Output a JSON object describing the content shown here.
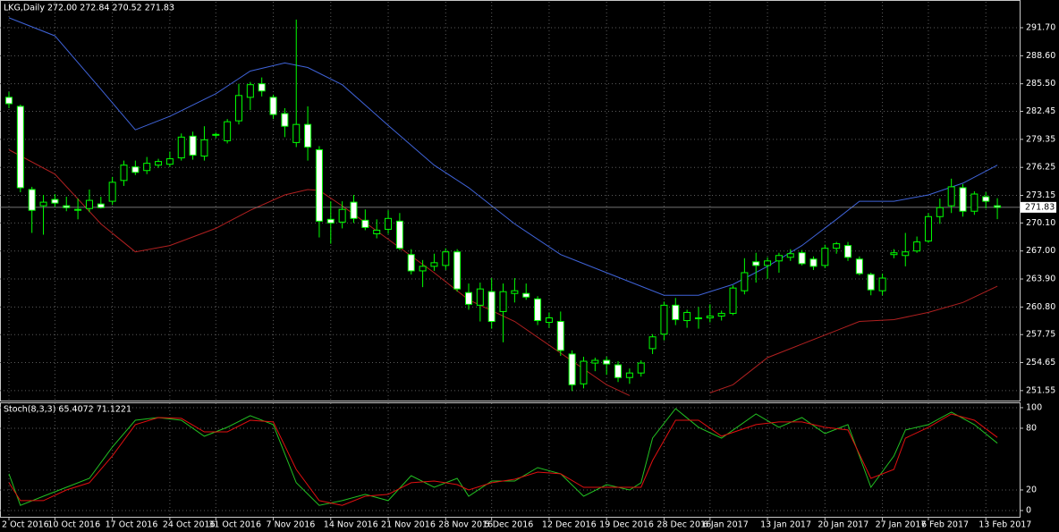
{
  "chart_data": [
    {
      "type": "candlestick",
      "title": "LKG,Daily  272.00 272.84 270.52 271.83",
      "categories": [
        "2 Oct 2016",
        null,
        null,
        null,
        "10 Oct 2016",
        null,
        null,
        null,
        null,
        "17 Oct 2016",
        null,
        null,
        null,
        null,
        "24 Oct 2016",
        null,
        null,
        null,
        "31 Oct 2016",
        null,
        null,
        null,
        null,
        "7 Nov 2016",
        null,
        null,
        null,
        null,
        "14 Nov 2016",
        null,
        null,
        null,
        null,
        "21 Nov 2016",
        null,
        null,
        null,
        null,
        "28 Nov 2016",
        null,
        null,
        null,
        "5 Dec 2016",
        null,
        null,
        null,
        null,
        "12 Dec 2016",
        null,
        null,
        null,
        null,
        "19 Dec 2016",
        null,
        null,
        null,
        null,
        "28 Dec 2016",
        null,
        null,
        null,
        "6 Jan 2017",
        null,
        null,
        null,
        null,
        "13 Jan 2017",
        null,
        null,
        null,
        null,
        "20 Jan 2017",
        null,
        null,
        null,
        null,
        "27 Jan 2017",
        null,
        null,
        null,
        "6 Feb 2017",
        null,
        null,
        null,
        null,
        "13 Feb 2017",
        null
      ],
      "open": [
        284.0,
        283.0,
        273.8,
        272.0,
        272.7,
        272.0,
        271.6,
        271.7,
        272.2,
        272.5,
        274.8,
        276.3,
        275.9,
        276.5,
        276.6,
        277.3,
        279.7,
        277.5,
        279.8,
        279.2,
        281.4,
        284.0,
        285.5,
        284.0,
        282.2,
        279.0,
        281.0,
        278.2,
        270.5,
        270.2,
        272.4,
        270.4,
        268.9,
        269.4,
        270.3,
        266.6,
        264.8,
        265.3,
        265.4,
        266.9,
        262.4,
        261.0,
        262.5,
        260.3,
        262.3,
        262.3,
        261.7,
        259.1,
        259.2,
        255.6,
        252.3,
        254.6,
        254.9,
        254.4,
        253.0,
        253.5,
        256.2,
        257.8,
        261.0,
        259.3,
        259.5,
        259.6,
        259.8,
        260.1,
        262.6,
        265.8,
        265.4,
        265.9,
        266.3,
        266.8,
        266.1,
        265.4,
        267.3,
        267.6,
        266.1,
        264.4,
        262.6,
        266.6,
        266.5,
        267.0,
        268.1,
        270.8,
        272.0,
        274.0,
        271.4,
        273.0,
        272.0
      ],
      "high": [
        284.6,
        283.2,
        274.1,
        273.2,
        273.3,
        273.0,
        272.8,
        273.8,
        273.0,
        275.2,
        277.0,
        277.0,
        277.4,
        277.2,
        278.0,
        280.0,
        280.2,
        280.8,
        280.1,
        281.6,
        285.5,
        285.7,
        286.2,
        284.3,
        282.8,
        292.6,
        283.0,
        278.6,
        272.5,
        272.5,
        273.2,
        271.6,
        270.5,
        271.5,
        271.2,
        267.2,
        266.0,
        266.7,
        267.3,
        267.2,
        263.4,
        263.5,
        264.0,
        263.4,
        264.0,
        263.4,
        262.0,
        260.2,
        260.3,
        256.0,
        255.3,
        255.2,
        255.3,
        254.8,
        254.0,
        254.9,
        257.8,
        261.4,
        261.8,
        260.5,
        260.8,
        261.1,
        260.4,
        263.2,
        266.2,
        266.8,
        266.3,
        266.8,
        267.2,
        267.1,
        266.4,
        267.7,
        268.0,
        268.0,
        266.4,
        264.6,
        264.5,
        267.2,
        269.0,
        268.6,
        271.2,
        272.8,
        275.0,
        274.4,
        273.6,
        273.5,
        272.84
      ],
      "low": [
        282.8,
        273.5,
        269.0,
        268.8,
        271.9,
        271.4,
        270.5,
        271.3,
        271.7,
        272.1,
        274.2,
        275.4,
        275.5,
        276.2,
        276.3,
        277.0,
        277.1,
        277.0,
        279.5,
        278.9,
        281.0,
        282.6,
        284.1,
        281.6,
        279.6,
        278.5,
        277.0,
        268.5,
        267.8,
        269.5,
        270.1,
        269.3,
        268.4,
        268.9,
        267.1,
        264.4,
        263.0,
        264.8,
        264.9,
        262.5,
        260.5,
        259.2,
        258.4,
        256.9,
        261.3,
        261.6,
        258.8,
        258.5,
        255.4,
        251.5,
        251.8,
        253.7,
        253.3,
        252.5,
        252.3,
        253.1,
        255.6,
        257.1,
        258.8,
        258.5,
        258.4,
        259.1,
        259.3,
        259.9,
        262.2,
        263.5,
        263.9,
        264.6,
        265.9,
        265.4,
        264.9,
        265.1,
        266.7,
        265.9,
        264.3,
        262.1,
        262.1,
        266.2,
        265.3,
        266.8,
        267.9,
        270.0,
        271.2,
        270.8,
        271.0,
        271.7,
        270.52
      ],
      "close": [
        283.3,
        274.0,
        271.5,
        272.4,
        272.3,
        271.8,
        271.5,
        272.6,
        271.8,
        274.6,
        276.5,
        275.7,
        276.7,
        276.9,
        277.2,
        279.6,
        277.6,
        279.3,
        279.9,
        281.3,
        284.2,
        285.4,
        284.7,
        282.1,
        280.8,
        281.0,
        278.5,
        270.3,
        270.1,
        271.6,
        270.6,
        269.6,
        269.3,
        270.6,
        267.3,
        264.8,
        265.3,
        265.7,
        266.9,
        262.8,
        261.1,
        262.8,
        259.2,
        262.5,
        262.6,
        261.9,
        259.3,
        259.6,
        256.0,
        252.2,
        254.8,
        254.9,
        254.5,
        253.0,
        253.5,
        254.6,
        257.5,
        261.0,
        259.4,
        260.2,
        259.6,
        259.8,
        260.1,
        262.9,
        264.6,
        265.4,
        265.9,
        266.5,
        266.7,
        265.6,
        265.3,
        267.3,
        267.8,
        266.3,
        264.5,
        262.7,
        264.0,
        266.8,
        266.9,
        268.0,
        270.8,
        271.8,
        274.1,
        271.4,
        273.3,
        272.5,
        271.83
      ],
      "series": [
        {
          "color": "#3f63d8",
          "x": [
            0,
            4,
            8,
            11,
            14,
            18,
            21,
            24,
            26,
            29,
            33,
            37,
            40,
            44,
            48,
            52,
            55,
            57,
            60,
            63,
            66,
            69,
            72,
            74,
            77,
            80,
            83,
            86
          ],
          "values": [
            292.8,
            290.8,
            284.9,
            280.4,
            281.9,
            284.4,
            286.9,
            287.8,
            287.3,
            285.4,
            280.9,
            276.5,
            274.0,
            270.0,
            266.6,
            264.6,
            263.1,
            262.1,
            262.1,
            263.3,
            265.3,
            267.6,
            270.5,
            272.5,
            272.5,
            273.2,
            274.5,
            276.5
          ]
        },
        {
          "color": "#b02020",
          "x": [
            0,
            4,
            8,
            11,
            14,
            18,
            21,
            24,
            26,
            27,
            29,
            33,
            37,
            40,
            44,
            48,
            52,
            54,
            57,
            61,
            63,
            66,
            69,
            72,
            74,
            77,
            80,
            83,
            86
          ],
          "values": [
            278.2,
            275.5,
            270.0,
            266.9,
            267.6,
            269.5,
            271.5,
            273.2,
            273.8,
            273.7,
            272.0,
            268.3,
            264.6,
            261.6,
            259.2,
            255.7,
            252.2,
            251.0,
            null,
            251.3,
            252.2,
            255.2,
            256.7,
            258.2,
            259.2,
            259.4,
            260.2,
            261.3,
            263.1
          ]
        }
      ],
      "last_price": {
        "value": 271.83,
        "label": "271.83"
      },
      "xlim": [
        -0.778,
        87.94
      ],
      "ylim": [
        250.45,
        294.57
      ],
      "yticks": [
        {
          "value": 291.7,
          "label": "291.70"
        },
        {
          "value": 288.6,
          "label": "288.60"
        },
        {
          "value": 285.5,
          "label": "285.50"
        },
        282.45,
        279.35,
        276.25,
        273.15,
        {
          "value": 270.1,
          "label": "270.10"
        },
        {
          "value": 267,
          "label": "267.00"
        },
        {
          "value": 263.9,
          "label": "263.90"
        },
        {
          "value": 260.8,
          "label": "260.80"
        },
        257.75,
        254.65,
        251.55
      ],
      "grid": true,
      "colors": {
        "bull_body": "#000000",
        "bear_body": "#ffffff",
        "wick": "#00ff00",
        "background": "#000000",
        "grid": "#5c5c5c"
      }
    },
    {
      "type": "line",
      "title": "Stoch(8,3,3) 65.4072 71.1221",
      "series": [
        {
          "color": "#22c022",
          "x": [
            0,
            1,
            3,
            5,
            7,
            9,
            11,
            13,
            15,
            17,
            19,
            21,
            23,
            25,
            27,
            29,
            31,
            33,
            35,
            37,
            39,
            40,
            42,
            44,
            46,
            48,
            50,
            52,
            54,
            55,
            56,
            58,
            60,
            62,
            65,
            67,
            69,
            71,
            73,
            75,
            77,
            78,
            80,
            82,
            84,
            86
          ],
          "values": [
            35.7,
            5,
            13.9,
            22.6,
            31.3,
            61.7,
            87.8,
            90.4,
            87.8,
            72.2,
            80.9,
            92.2,
            83.5,
            27,
            5,
            9.6,
            15.7,
            9.6,
            33.9,
            22.6,
            31.3,
            13.9,
            28.7,
            28.7,
            41.7,
            35.7,
            13.9,
            25.2,
            20,
            27,
            70.4,
            99.1,
            80.9,
            70.4,
            93.9,
            80.9,
            90.4,
            74.8,
            83.5,
            22.6,
            53,
            78.3,
            83.5,
            95.7,
            83.5,
            65.4
          ]
        },
        {
          "color": "#e01010",
          "x": [
            0,
            1,
            3,
            5,
            7,
            9,
            11,
            13,
            15,
            17,
            19,
            21,
            23,
            25,
            27,
            29,
            31,
            33,
            35,
            37,
            39,
            40,
            42,
            44,
            46,
            48,
            50,
            52,
            54,
            55,
            56,
            58,
            60,
            62,
            65,
            67,
            69,
            71,
            73,
            75,
            77,
            78,
            80,
            82,
            84,
            86
          ],
          "values": [
            27,
            9.6,
            9.6,
            20,
            27,
            53,
            83.5,
            90.4,
            89.6,
            76.5,
            76.5,
            87.8,
            86.1,
            40,
            9.6,
            5,
            13.9,
            15.7,
            27,
            28.7,
            25.2,
            20,
            27,
            30.4,
            37.4,
            35.7,
            22.6,
            22.6,
            22.6,
            22.6,
            48.7,
            87.8,
            87.8,
            72.2,
            83.5,
            86.1,
            86.1,
            80.9,
            78.3,
            31.3,
            40,
            70.4,
            80.9,
            93.9,
            87.8,
            71.1
          ]
        }
      ],
      "xlim": [
        -0.778,
        87.94
      ],
      "ylim": [
        -6.1,
        104.3
      ],
      "yticks": [
        0,
        20,
        80,
        100
      ],
      "grid": true
    }
  ]
}
